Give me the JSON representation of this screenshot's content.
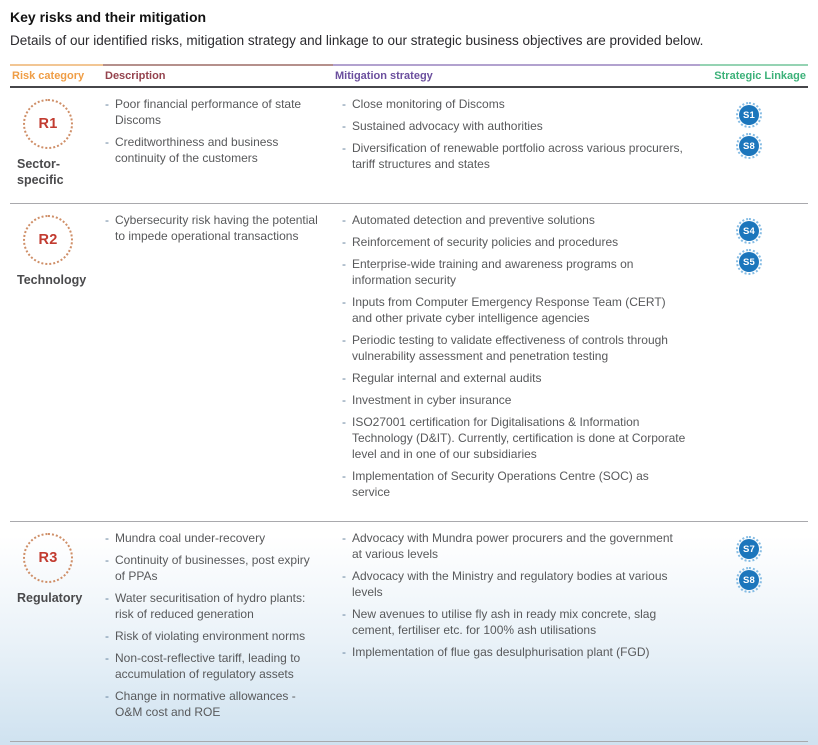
{
  "page": {
    "title": "Key risks and their mitigation",
    "subtitle": "Details of our identified risks, mitigation strategy and linkage to our strategic business objectives are provided below."
  },
  "theme": {
    "bullet_char": "-",
    "risk_badge_text_color": "#c23b30",
    "risk_badge_ring_color": "#cf8f68",
    "linkage_badge_bg": "#1c76bc",
    "linkage_badge_ring": "#85bce4",
    "body_text_color": "#58595b"
  },
  "table": {
    "headers": [
      {
        "label": "Risk category",
        "color": "#ef9d45",
        "line": "#f2c694"
      },
      {
        "label": "Description",
        "color": "#94424d",
        "line": "#b5908c"
      },
      {
        "label": "Mitigation strategy",
        "color": "#6b4f9e",
        "line": "#b2a2cf"
      },
      {
        "label": "Strategic Linkage",
        "color": "#3cb179",
        "line": "#95d3b3"
      }
    ],
    "rows": [
      {
        "risk_id": "R1",
        "risk_category": "Sector-specific",
        "description": [
          "Poor financial performance of state Discoms",
          "Creditworthiness and business continuity of the customers"
        ],
        "mitigation": [
          "Close monitoring of Discoms",
          "Sustained advocacy with authorities",
          "Diversification of renewable portfolio across various procurers, tariff structures and states"
        ],
        "linkages": [
          "S1",
          "S8"
        ]
      },
      {
        "risk_id": "R2",
        "risk_category": "Technology",
        "description": [
          "Cybersecurity risk having the potential to impede operational transactions"
        ],
        "mitigation": [
          "Automated detection and preventive solutions",
          "Reinforcement of security policies and procedures",
          "Enterprise-wide training and awareness programs on information security",
          "Inputs from Computer Emergency Response Team (CERT) and other private cyber intelligence agencies",
          "Periodic testing to validate effectiveness of controls through vulnerability assessment and penetration testing",
          "Regular internal and external audits",
          "Investment in cyber insurance",
          "ISO27001 certification for Digitalisations & Information Technology (D&IT). Currently, certification is done at Corporate level and in one of our subsidiaries",
          "Implementation of Security Operations Centre (SOC) as service"
        ],
        "linkages": [
          "S4",
          "S5"
        ]
      },
      {
        "risk_id": "R3",
        "risk_category": "Regulatory",
        "description": [
          "Mundra coal under-recovery",
          "Continuity of businesses, post expiry of PPAs",
          "Water securitisation of hydro plants: risk of reduced generation",
          "Risk of violating environment norms",
          "Non-cost-reflective tariff, leading to accumulation of regulatory assets",
          "Change in normative allowances - O&M cost and ROE"
        ],
        "mitigation": [
          "Advocacy with Mundra power procurers and the government at various levels",
          "Advocacy with the Ministry and regulatory bodies at various levels",
          "New avenues to utilise fly ash in ready mix concrete, slag cement, fertiliser etc. for 100% ash utilisations",
          "Implementation of flue gas desulphurisation plant (FGD)"
        ],
        "linkages": [
          "S7",
          "S8"
        ]
      }
    ]
  }
}
